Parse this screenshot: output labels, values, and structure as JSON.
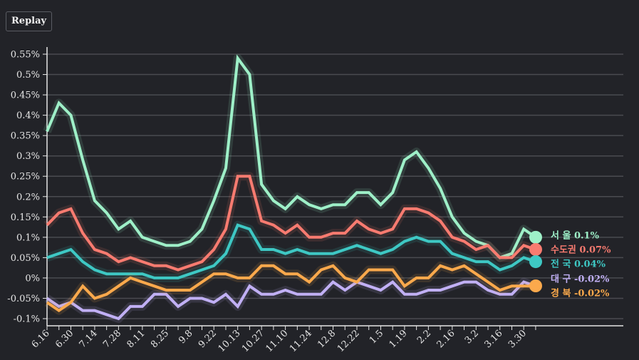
{
  "controls": {
    "replay_label": "Replay"
  },
  "chart_data": {
    "type": "line",
    "title": "",
    "xlabel": "",
    "ylabel": "",
    "ylim": [
      -0.1,
      0.55
    ],
    "yticks": [
      -0.1,
      -0.05,
      0,
      0.05,
      0.1,
      0.15,
      0.2,
      0.25,
      0.3,
      0.35,
      0.4,
      0.45,
      0.5,
      0.55
    ],
    "ytick_labels": [
      "-0.1%",
      "-0.05%",
      "0%",
      "0.05%",
      "0.1%",
      "0.15%",
      "0.2%",
      "0.25%",
      "0.3%",
      "0.35%",
      "0.4%",
      "0.45%",
      "0.5%",
      "0.55%"
    ],
    "tick_count": 42,
    "xtick_labels": [
      "6.16",
      "6.30",
      "7.14",
      "7.28",
      "8.11",
      "8.25",
      "9.8",
      "9.22",
      "10.13",
      "10.27",
      "11.10",
      "11.24",
      "12.8",
      "12.22",
      "1.5",
      "1.19",
      "2.2",
      "2.16",
      "3.2",
      "3.16",
      "3.30"
    ],
    "grid": true,
    "legend_placement": "right-end",
    "series": [
      {
        "name": "서 울",
        "value_label": "0.1%",
        "color": "#9ef0c8",
        "values": [
          0.36,
          0.43,
          0.4,
          0.29,
          0.19,
          0.16,
          0.12,
          0.14,
          0.1,
          0.09,
          0.08,
          0.08,
          0.09,
          0.12,
          0.19,
          0.27,
          0.54,
          0.5,
          0.23,
          0.19,
          0.17,
          0.2,
          0.18,
          0.17,
          0.18,
          0.18,
          0.21,
          0.21,
          0.18,
          0.21,
          0.29,
          0.31,
          0.27,
          0.22,
          0.15,
          0.11,
          0.09,
          0.08,
          0.05,
          0.06,
          0.12,
          0.1
        ]
      },
      {
        "name": "수도권",
        "value_label": "0.07%",
        "color": "#f87b70",
        "values": [
          0.13,
          0.16,
          0.17,
          0.11,
          0.07,
          0.06,
          0.04,
          0.05,
          0.04,
          0.03,
          0.03,
          0.02,
          0.03,
          0.04,
          0.07,
          0.12,
          0.25,
          0.25,
          0.14,
          0.13,
          0.11,
          0.13,
          0.1,
          0.1,
          0.11,
          0.11,
          0.14,
          0.12,
          0.11,
          0.12,
          0.17,
          0.17,
          0.16,
          0.14,
          0.1,
          0.09,
          0.07,
          0.08,
          0.05,
          0.05,
          0.08,
          0.07
        ]
      },
      {
        "name": "전 국",
        "value_label": "0.04%",
        "color": "#3ec8c4",
        "values": [
          0.05,
          0.06,
          0.07,
          0.04,
          0.02,
          0.01,
          0.01,
          0.01,
          0.01,
          0.0,
          0.0,
          0.0,
          0.01,
          0.02,
          0.03,
          0.06,
          0.13,
          0.12,
          0.07,
          0.07,
          0.06,
          0.07,
          0.06,
          0.06,
          0.06,
          0.07,
          0.08,
          0.07,
          0.06,
          0.07,
          0.09,
          0.1,
          0.09,
          0.09,
          0.06,
          0.05,
          0.04,
          0.04,
          0.02,
          0.03,
          0.05,
          0.04
        ]
      },
      {
        "name": "대 구",
        "value_label": "-0.02%",
        "color": "#c1b0f5",
        "values": [
          -0.05,
          -0.07,
          -0.06,
          -0.08,
          -0.08,
          -0.09,
          -0.1,
          -0.07,
          -0.07,
          -0.04,
          -0.04,
          -0.07,
          -0.05,
          -0.05,
          -0.06,
          -0.04,
          -0.07,
          -0.02,
          -0.04,
          -0.04,
          -0.03,
          -0.04,
          -0.04,
          -0.04,
          -0.01,
          -0.03,
          -0.01,
          -0.02,
          -0.03,
          -0.01,
          -0.04,
          -0.04,
          -0.03,
          -0.03,
          -0.02,
          -0.01,
          -0.01,
          -0.03,
          -0.04,
          -0.04,
          -0.01,
          -0.02
        ]
      },
      {
        "name": "경 북",
        "value_label": "-0.02%",
        "color": "#fba94c",
        "values": [
          -0.06,
          -0.08,
          -0.06,
          -0.02,
          -0.05,
          -0.04,
          -0.02,
          0.0,
          -0.01,
          -0.02,
          -0.03,
          -0.03,
          -0.03,
          -0.01,
          0.01,
          0.01,
          0.0,
          0.0,
          0.03,
          0.03,
          0.01,
          0.01,
          -0.01,
          0.02,
          0.03,
          0.0,
          -0.01,
          0.02,
          0.02,
          0.02,
          -0.02,
          0.0,
          0.0,
          0.03,
          0.02,
          0.03,
          0.01,
          -0.01,
          -0.03,
          -0.02,
          -0.02,
          -0.02
        ]
      }
    ]
  }
}
